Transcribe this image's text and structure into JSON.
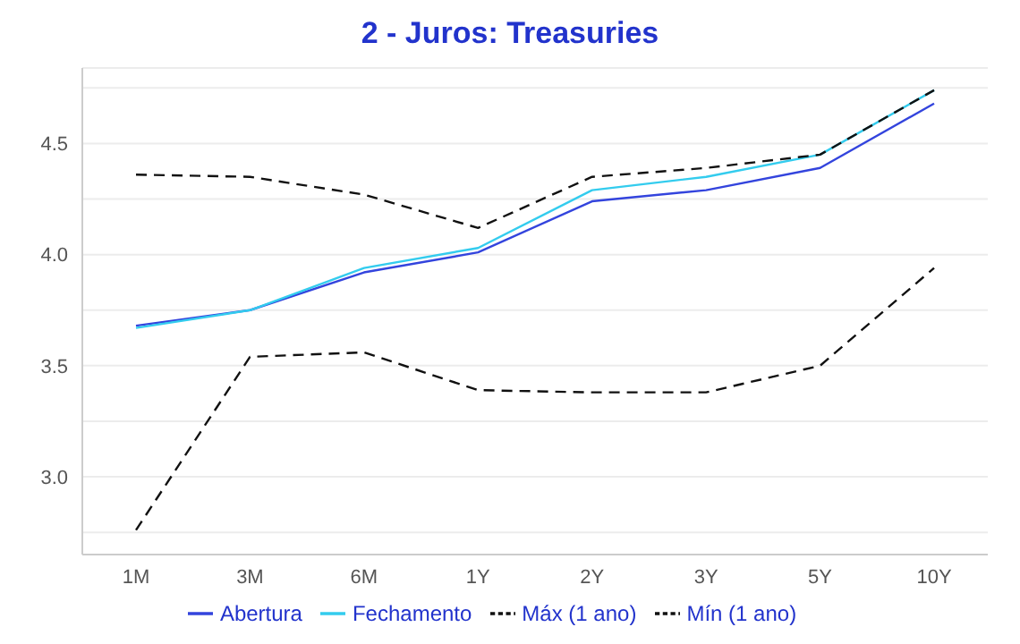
{
  "chart_data": {
    "type": "line",
    "title": "2 - Juros: Treasuries",
    "categories": [
      "1M",
      "3M",
      "6M",
      "1Y",
      "2Y",
      "3Y",
      "5Y",
      "10Y"
    ],
    "series": [
      {
        "name": "Abertura",
        "color": "#3344dd",
        "line_style": "solid",
        "values": [
          3.68,
          3.75,
          3.92,
          4.01,
          4.24,
          4.29,
          4.39,
          4.68
        ]
      },
      {
        "name": "Fechamento",
        "color": "#33ccee",
        "line_style": "solid",
        "values": [
          3.67,
          3.75,
          3.94,
          4.03,
          4.29,
          4.35,
          4.45,
          4.74
        ]
      },
      {
        "name": "Máx (1 ano)",
        "color": "#111111",
        "line_style": "dashed",
        "values": [
          4.36,
          4.35,
          4.27,
          4.12,
          4.35,
          4.39,
          4.45,
          4.74
        ]
      },
      {
        "name": "Mín (1 ano)",
        "color": "#111111",
        "line_style": "dashed",
        "values": [
          2.76,
          3.54,
          3.56,
          3.39,
          3.38,
          3.38,
          3.5,
          3.94
        ]
      }
    ],
    "ylim": [
      2.65,
      4.84
    ],
    "yticks": [
      {
        "value": 2.75,
        "label": null
      },
      {
        "value": 3,
        "label": "3.0"
      },
      {
        "value": 3.25,
        "label": null
      },
      {
        "value": 3.5,
        "label": "3.5"
      },
      {
        "value": 3.75,
        "label": null
      },
      {
        "value": 4,
        "label": "4.0"
      },
      {
        "value": 4.25,
        "label": null
      },
      {
        "value": 4.5,
        "label": "4.5"
      },
      {
        "value": 4.75,
        "label": null
      }
    ],
    "grid": "y",
    "legend": "bottom",
    "marker": "none"
  }
}
